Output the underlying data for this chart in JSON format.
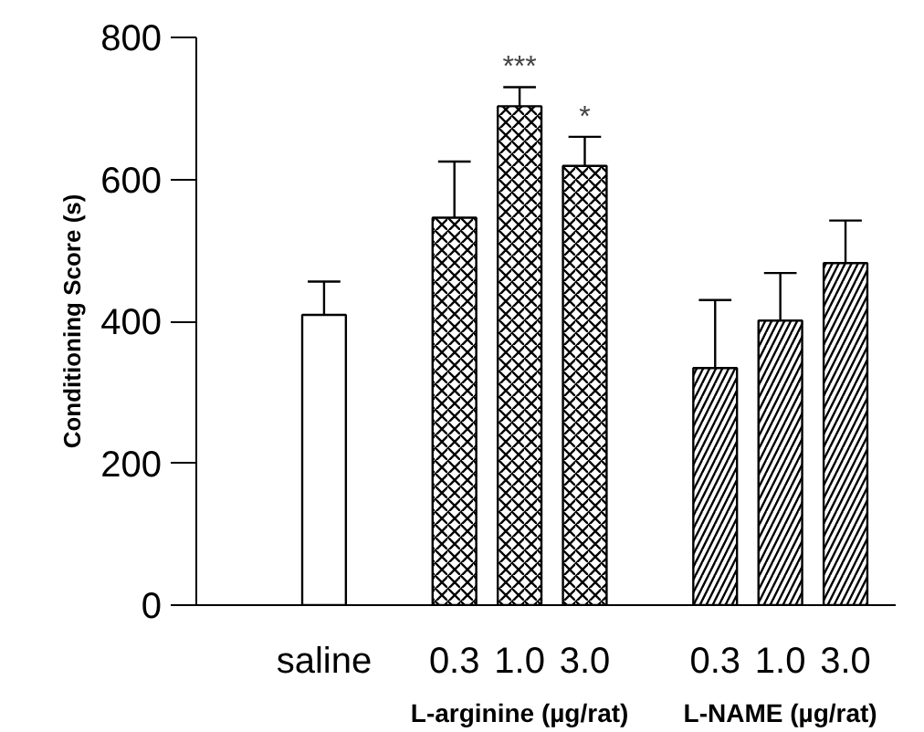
{
  "chart_data": {
    "type": "bar",
    "ylabel": "Conditioning Score (s)",
    "categories": [
      "saline",
      null,
      "0.3",
      "1.0",
      "3.0",
      null,
      "0.3",
      "1.0",
      "3.0"
    ],
    "values": [
      409,
      null,
      546,
      703,
      619,
      null,
      334,
      401,
      482
    ],
    "errors": [
      [
        409,
        456
      ],
      null,
      [
        546,
        625
      ],
      [
        703,
        730
      ],
      [
        619,
        660
      ],
      null,
      [
        334,
        430
      ],
      [
        401,
        468
      ],
      [
        482,
        542
      ]
    ],
    "value_labels": [
      null,
      null,
      null,
      "***",
      "*",
      null,
      null,
      null,
      null
    ],
    "colors": [
      "#ffffff",
      null,
      "#ffffff",
      "#ffffff",
      "#ffffff",
      null,
      "#ffffff",
      "#ffffff",
      "#ffffff"
    ],
    "ylim": [
      0,
      800
    ],
    "yticks": [
      0,
      200,
      400,
      600,
      800
    ],
    "annotations": [
      "L-arginine (µg/rat)",
      "L-NAME (µg/rat)"
    ],
    "grid": false
  }
}
